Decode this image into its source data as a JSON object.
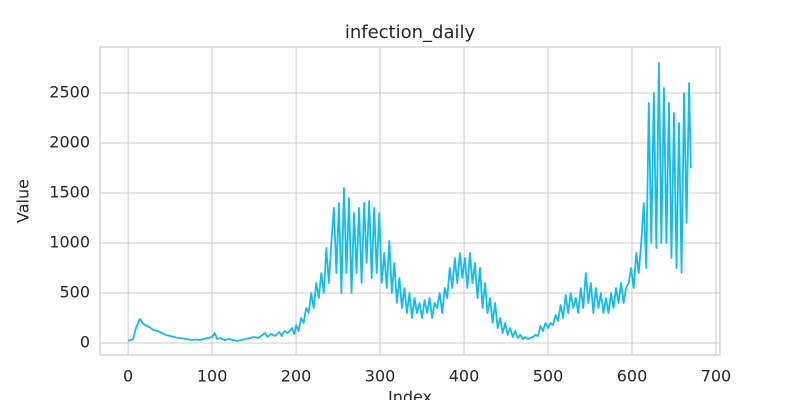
{
  "chart_data": {
    "type": "line",
    "title": "infection_daily",
    "x_label": "Index",
    "y_label": "Value",
    "x": [
      0,
      3,
      6,
      9,
      12,
      14,
      17,
      20,
      25,
      30,
      35,
      40,
      45,
      50,
      55,
      60,
      65,
      70,
      75,
      80,
      85,
      90,
      95,
      100,
      103,
      106,
      110,
      115,
      120,
      125,
      130,
      135,
      140,
      145,
      150,
      155,
      160,
      163,
      166,
      170,
      175,
      180,
      183,
      186,
      190,
      195,
      198,
      200,
      203,
      206,
      209,
      212,
      215,
      218,
      221,
      224,
      227,
      230,
      233,
      236,
      239,
      242,
      245,
      248,
      251,
      254,
      257,
      260,
      263,
      266,
      269,
      272,
      275,
      278,
      281,
      284,
      287,
      290,
      293,
      296,
      299,
      302,
      305,
      308,
      311,
      314,
      317,
      320,
      323,
      326,
      329,
      332,
      335,
      338,
      341,
      344,
      347,
      350,
      353,
      356,
      359,
      362,
      365,
      368,
      371,
      374,
      377,
      380,
      383,
      386,
      389,
      392,
      395,
      398,
      401,
      404,
      407,
      410,
      413,
      416,
      419,
      422,
      425,
      428,
      431,
      434,
      437,
      440,
      443,
      446,
      449,
      452,
      455,
      458,
      461,
      464,
      467,
      470,
      473,
      476,
      479,
      482,
      485,
      488,
      491,
      494,
      497,
      500,
      503,
      506,
      509,
      512,
      515,
      518,
      521,
      524,
      527,
      530,
      533,
      536,
      539,
      542,
      545,
      548,
      551,
      554,
      557,
      560,
      563,
      566,
      569,
      572,
      575,
      578,
      581,
      584,
      587,
      590,
      593,
      596,
      599,
      602,
      605,
      608,
      611,
      614,
      617,
      620,
      623,
      626,
      629,
      632,
      635,
      638,
      641,
      644,
      647,
      650,
      653,
      656,
      659,
      662,
      665,
      668,
      670
    ],
    "series": [
      {
        "name": "infection_daily",
        "color": "#12bcf0",
        "values": [
          20,
          30,
          40,
          140,
          200,
          240,
          200,
          180,
          160,
          130,
          120,
          100,
          80,
          70,
          60,
          50,
          45,
          40,
          30,
          35,
          30,
          40,
          50,
          60,
          100,
          40,
          50,
          30,
          40,
          30,
          20,
          30,
          40,
          50,
          60,
          50,
          80,
          100,
          60,
          90,
          70,
          110,
          70,
          120,
          100,
          150,
          90,
          180,
          120,
          250,
          200,
          350,
          300,
          500,
          350,
          600,
          450,
          700,
          500,
          950,
          600,
          1000,
          1350,
          700,
          1400,
          500,
          1550,
          700,
          1450,
          500,
          1300,
          700,
          1350,
          600,
          1400,
          800,
          1420,
          650,
          1350,
          700,
          1300,
          600,
          900,
          550,
          1020,
          500,
          800,
          400,
          650,
          350,
          550,
          300,
          500,
          250,
          450,
          300,
          400,
          250,
          430,
          300,
          450,
          250,
          400,
          350,
          500,
          300,
          550,
          450,
          750,
          550,
          850,
          600,
          900,
          650,
          850,
          550,
          900,
          600,
          800,
          450,
          750,
          350,
          600,
          300,
          450,
          200,
          400,
          150,
          250,
          100,
          200,
          80,
          150,
          60,
          120,
          50,
          80,
          40,
          60,
          40,
          50,
          60,
          80,
          70,
          170,
          120,
          200,
          150,
          200,
          180,
          280,
          220,
          380,
          250,
          480,
          300,
          500,
          350,
          450,
          300,
          550,
          350,
          700,
          400,
          600,
          300,
          550,
          350,
          500,
          300,
          450,
          300,
          500,
          350,
          550,
          400,
          600,
          400,
          550,
          600,
          750,
          550,
          900,
          700,
          1000,
          1400,
          750,
          2400,
          1000,
          2500,
          950,
          2800,
          1000,
          2550,
          1000,
          2400,
          850,
          2300,
          750,
          2200,
          700,
          2500,
          1200,
          2600,
          1750
        ]
      }
    ],
    "xlim": [
      -33.5,
      704.8
    ],
    "ylim": [
      -120,
      2960
    ],
    "xticks": [
      0,
      100,
      200,
      300,
      400,
      500,
      600,
      700
    ],
    "yticks": [
      0,
      500,
      1000,
      1500,
      2000,
      2500
    ],
    "grid": true
  }
}
